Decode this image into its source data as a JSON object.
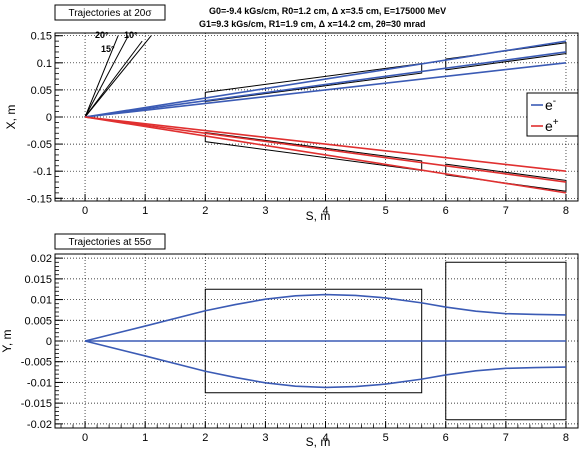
{
  "chart_data": [
    {
      "type": "line",
      "title": "Trajectories at 20σ",
      "header_lines": [
        "G0=-9.4 kGs/cm, R0=1.2 cm, Δ x=3.5 cm,  E=175000 MeV",
        "G1=9.3 kGs/cm,  R1=1.9 cm,  Δ x=14.2 cm, 2θ=30 mrad"
      ],
      "xlabel": "S, m",
      "ylabel": "X, m",
      "xlim": [
        -0.5,
        8.2
      ],
      "ylim": [
        -0.155,
        0.155
      ],
      "xticks": [
        "0",
        "1",
        "2",
        "3",
        "4",
        "5",
        "6",
        "7",
        "8"
      ],
      "yticks": [
        "-0.15",
        "-0.1",
        "-0.05",
        "0",
        "0.05",
        "0.1",
        "0.15"
      ],
      "grid": true,
      "angle_labels": [
        "20°",
        "15°",
        "10°"
      ],
      "legend": {
        "placement": "right",
        "entries": [
          {
            "label": "e",
            "sup": "-",
            "color": "#3b5bb5"
          },
          {
            "label": "e",
            "sup": "+",
            "color": "#e03030"
          }
        ]
      },
      "series": [
        {
          "color": "#3b5bb5",
          "x": [
            0,
            8
          ],
          "y": [
            0,
            0.14
          ]
        },
        {
          "color": "#3b5bb5",
          "x": [
            0,
            8
          ],
          "y": [
            0,
            0.12
          ]
        },
        {
          "color": "#3b5bb5",
          "x": [
            0,
            8
          ],
          "y": [
            0,
            0.1
          ]
        },
        {
          "color": "#e03030",
          "x": [
            0,
            8
          ],
          "y": [
            0,
            -0.1
          ]
        },
        {
          "color": "#e03030",
          "x": [
            0,
            8
          ],
          "y": [
            0,
            -0.12
          ]
        },
        {
          "color": "#e03030",
          "x": [
            0,
            8
          ],
          "y": [
            0,
            -0.14
          ]
        }
      ],
      "angle_lines": [
        {
          "x": [
            0,
            1.1
          ],
          "y": [
            0,
            0.15
          ]
        },
        {
          "x": [
            0,
            0.95
          ],
          "y": [
            0,
            0.14
          ]
        },
        {
          "x": [
            0,
            0.72
          ],
          "y": [
            0,
            0.15
          ]
        },
        {
          "x": [
            0,
            0.55
          ],
          "y": [
            0,
            0.15
          ]
        }
      ],
      "boxes": [
        [
          [
            2.0,
            0.0285
          ],
          [
            5.6,
            0.081
          ],
          [
            5.6,
            0.0985
          ],
          [
            2.0,
            0.0455
          ]
        ],
        [
          [
            6.0,
            0.087
          ],
          [
            8.0,
            0.117
          ],
          [
            8.0,
            0.137
          ],
          [
            6.0,
            0.107
          ]
        ],
        [
          [
            2.0,
            -0.0285
          ],
          [
            5.6,
            -0.081
          ],
          [
            5.6,
            -0.0985
          ],
          [
            2.0,
            -0.0455
          ]
        ],
        [
          [
            6.0,
            -0.087
          ],
          [
            8.0,
            -0.117
          ],
          [
            8.0,
            -0.137
          ],
          [
            6.0,
            -0.107
          ]
        ]
      ]
    },
    {
      "type": "line",
      "title": "Trajectories at 55σ",
      "xlabel": "S, m",
      "ylabel": "Y, m",
      "xlim": [
        -0.5,
        8.2
      ],
      "ylim": [
        -0.021,
        0.021
      ],
      "xticks": [
        "0",
        "1",
        "2",
        "3",
        "4",
        "5",
        "6",
        "7",
        "8"
      ],
      "yticks": [
        "-0.02",
        "-0.015",
        "-0.01",
        "-0.005",
        "0",
        "0.005",
        "0.01",
        "0.015",
        "0.02"
      ],
      "grid": true,
      "series": [
        {
          "color": "#3b5bb5",
          "x": [
            0,
            1,
            2,
            2.5,
            3,
            3.5,
            4,
            4.5,
            5,
            5.6,
            6,
            6.5,
            7,
            7.5,
            8
          ],
          "y": [
            0,
            0.0036,
            0.0073,
            0.0088,
            0.0101,
            0.0109,
            0.0112,
            0.011,
            0.0104,
            0.0092,
            0.0082,
            0.0072,
            0.0066,
            0.0064,
            0.0063
          ]
        },
        {
          "color": "#3b5bb5",
          "x": [
            0,
            1,
            2,
            2.5,
            3,
            3.5,
            4,
            4.5,
            5,
            5.6,
            6,
            6.5,
            7,
            7.5,
            8
          ],
          "y": [
            0,
            -0.0036,
            -0.0073,
            -0.0088,
            -0.0101,
            -0.0109,
            -0.0112,
            -0.011,
            -0.0104,
            -0.0092,
            -0.0082,
            -0.0072,
            -0.0066,
            -0.0064,
            -0.0063
          ]
        },
        {
          "color": "#3b5bb5",
          "x": [
            0,
            8
          ],
          "y": [
            0,
            0
          ]
        }
      ],
      "boxes": [
        [
          [
            2.0,
            0.0125
          ],
          [
            5.6,
            0.0125
          ],
          [
            5.6,
            -0.0125
          ],
          [
            2.0,
            -0.0125
          ]
        ],
        [
          [
            6.0,
            0.019
          ],
          [
            8.0,
            0.019
          ],
          [
            8.0,
            -0.019
          ],
          [
            6.0,
            -0.019
          ]
        ]
      ]
    }
  ]
}
